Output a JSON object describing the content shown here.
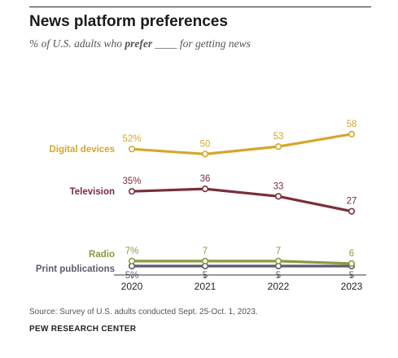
{
  "header": {
    "title": "News platform preferences",
    "subtitle_pre": "% of U.S. adults who ",
    "subtitle_bold": "prefer",
    "subtitle_post": " ____ for getting news"
  },
  "footer": {
    "source": "Source: Survey of U.S. adults conducted Sept. 25-Oct. 1, 2023.",
    "org": "PEW RESEARCH CENTER"
  },
  "chart_data": {
    "type": "line",
    "title": "News platform preferences",
    "x": [
      "2020",
      "2021",
      "2022",
      "2023"
    ],
    "ylim": [
      0,
      60
    ],
    "grid": false,
    "legend": "direct labels at left of each line",
    "series": [
      {
        "name": "Digital devices",
        "values": [
          52,
          50,
          53,
          58
        ],
        "color": "#d4a72c",
        "labels": [
          "52%",
          "50",
          "53",
          "58"
        ],
        "label_pos": "above"
      },
      {
        "name": "Television",
        "values": [
          35,
          36,
          33,
          27
        ],
        "color": "#7a2e3b",
        "labels": [
          "35%",
          "36",
          "33",
          "27"
        ],
        "label_pos": "above"
      },
      {
        "name": "Radio",
        "values": [
          7,
          7,
          7,
          6
        ],
        "color": "#8c9a3c",
        "labels": [
          "7%",
          "7",
          "7",
          "6"
        ],
        "label_pos": "above"
      },
      {
        "name": "Print publications",
        "values": [
          5,
          5,
          5,
          5
        ],
        "color": "#5e5a6e",
        "labels": [
          "5%",
          "5",
          "5",
          "5"
        ],
        "label_pos": "below"
      }
    ]
  }
}
